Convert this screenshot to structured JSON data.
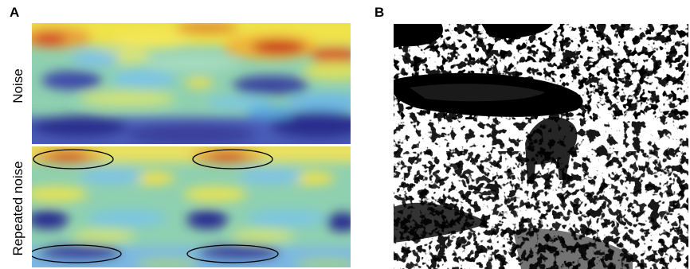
{
  "panel_a": {
    "letter": "A",
    "rows": [
      {
        "label": "Noise"
      },
      {
        "label": "Repeated noise"
      }
    ]
  },
  "panel_b": {
    "letter": "B"
  },
  "colors": {
    "low": "#2b2f8f",
    "mid_low": "#7fc8e8",
    "mid": "#9fd08a",
    "mid_high": "#f2e04a",
    "high": "#c8321e"
  }
}
